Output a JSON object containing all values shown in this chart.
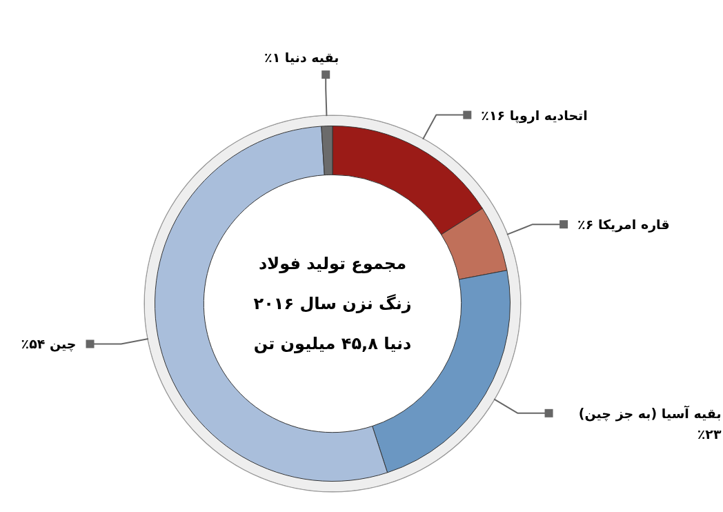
{
  "chart_data": {
    "type": "donut",
    "title": "مجموع تولید فولاد زنگ نزن سال ۲۰۱۶ دنیا ۴۵,۸ میلیون تن",
    "categories": [
      "اتحادیه اروپا",
      "قاره امریکا",
      "بقیه آسیا (به جز چین)",
      "چین",
      "بقیه دنیا"
    ],
    "values": [
      16,
      6,
      23,
      54,
      1
    ],
    "value_labels": [
      "۱۶٪",
      "۶٪",
      "۲۳٪",
      "۵۴٪",
      "۱٪"
    ],
    "colors": [
      "#9b1b17",
      "#c0705a",
      "#6b97c2",
      "#a9bedb",
      "#6b6b6b"
    ],
    "legend": false
  }
}
